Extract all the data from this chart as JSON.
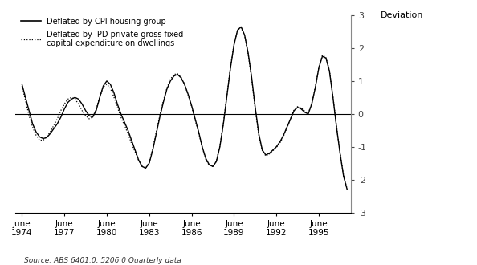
{
  "title": "",
  "ylabel": "Deviation",
  "source_text": "Source: ABS 6401.0, 5206.0 Quarterly data",
  "legend1": "Deflated by CPI housing group",
  "legend2": "Deflated by IPD private gross fixed\ncapital expenditure on dwellings",
  "ylim": [
    -3,
    3
  ],
  "yticks": [
    -3,
    -2,
    -1,
    0,
    1,
    2,
    3
  ],
  "xtick_labels": [
    "June\n1974",
    "June\n1977",
    "June\n1980",
    "June\n1983",
    "June\n1986",
    "June\n1989",
    "June\n1992",
    "June\n1995"
  ],
  "xtick_positions": [
    1974.5,
    1977.5,
    1980.5,
    1983.5,
    1986.5,
    1989.5,
    1992.5,
    1995.5
  ],
  "cpi_data": [
    [
      1974.5,
      0.9
    ],
    [
      1974.75,
      0.5
    ],
    [
      1975.0,
      0.1
    ],
    [
      1975.25,
      -0.3
    ],
    [
      1975.5,
      -0.55
    ],
    [
      1975.75,
      -0.7
    ],
    [
      1976.0,
      -0.75
    ],
    [
      1976.25,
      -0.72
    ],
    [
      1976.5,
      -0.6
    ],
    [
      1976.75,
      -0.45
    ],
    [
      1977.0,
      -0.3
    ],
    [
      1977.25,
      -0.1
    ],
    [
      1977.5,
      0.15
    ],
    [
      1977.75,
      0.35
    ],
    [
      1978.0,
      0.45
    ],
    [
      1978.25,
      0.5
    ],
    [
      1978.5,
      0.45
    ],
    [
      1978.75,
      0.3
    ],
    [
      1979.0,
      0.1
    ],
    [
      1979.25,
      -0.05
    ],
    [
      1979.5,
      -0.1
    ],
    [
      1979.75,
      0.1
    ],
    [
      1980.0,
      0.5
    ],
    [
      1980.25,
      0.85
    ],
    [
      1980.5,
      1.0
    ],
    [
      1980.75,
      0.9
    ],
    [
      1981.0,
      0.65
    ],
    [
      1981.25,
      0.3
    ],
    [
      1981.5,
      0.0
    ],
    [
      1981.75,
      -0.25
    ],
    [
      1982.0,
      -0.5
    ],
    [
      1982.25,
      -0.8
    ],
    [
      1982.5,
      -1.1
    ],
    [
      1982.75,
      -1.4
    ],
    [
      1983.0,
      -1.6
    ],
    [
      1983.25,
      -1.65
    ],
    [
      1983.5,
      -1.5
    ],
    [
      1983.75,
      -1.1
    ],
    [
      1984.0,
      -0.6
    ],
    [
      1984.25,
      -0.1
    ],
    [
      1984.5,
      0.35
    ],
    [
      1984.75,
      0.75
    ],
    [
      1985.0,
      1.0
    ],
    [
      1985.25,
      1.15
    ],
    [
      1985.5,
      1.2
    ],
    [
      1985.75,
      1.1
    ],
    [
      1986.0,
      0.9
    ],
    [
      1986.25,
      0.6
    ],
    [
      1986.5,
      0.25
    ],
    [
      1986.75,
      -0.15
    ],
    [
      1987.0,
      -0.55
    ],
    [
      1987.25,
      -1.0
    ],
    [
      1987.5,
      -1.35
    ],
    [
      1987.75,
      -1.55
    ],
    [
      1988.0,
      -1.6
    ],
    [
      1988.25,
      -1.45
    ],
    [
      1988.5,
      -1.0
    ],
    [
      1988.75,
      -0.3
    ],
    [
      1989.0,
      0.55
    ],
    [
      1989.25,
      1.4
    ],
    [
      1989.5,
      2.1
    ],
    [
      1989.75,
      2.55
    ],
    [
      1990.0,
      2.65
    ],
    [
      1990.25,
      2.4
    ],
    [
      1990.5,
      1.85
    ],
    [
      1990.75,
      1.1
    ],
    [
      1991.0,
      0.2
    ],
    [
      1991.25,
      -0.6
    ],
    [
      1991.5,
      -1.1
    ],
    [
      1991.75,
      -1.25
    ],
    [
      1992.0,
      -1.2
    ],
    [
      1992.25,
      -1.1
    ],
    [
      1992.5,
      -1.0
    ],
    [
      1992.75,
      -0.85
    ],
    [
      1993.0,
      -0.65
    ],
    [
      1993.25,
      -0.4
    ],
    [
      1993.5,
      -0.15
    ],
    [
      1993.75,
      0.1
    ],
    [
      1994.0,
      0.2
    ],
    [
      1994.25,
      0.15
    ],
    [
      1994.5,
      0.05
    ],
    [
      1994.75,
      0.0
    ],
    [
      1995.0,
      0.3
    ],
    [
      1995.25,
      0.8
    ],
    [
      1995.5,
      1.4
    ],
    [
      1995.75,
      1.75
    ],
    [
      1996.0,
      1.7
    ],
    [
      1996.25,
      1.3
    ],
    [
      1996.5,
      0.5
    ],
    [
      1996.75,
      -0.4
    ],
    [
      1997.0,
      -1.2
    ],
    [
      1997.25,
      -1.9
    ],
    [
      1997.5,
      -2.3
    ]
  ],
  "ipd_data": [
    [
      1974.5,
      0.85
    ],
    [
      1974.75,
      0.4
    ],
    [
      1975.0,
      -0.05
    ],
    [
      1975.25,
      -0.4
    ],
    [
      1975.5,
      -0.65
    ],
    [
      1975.75,
      -0.8
    ],
    [
      1976.0,
      -0.8
    ],
    [
      1976.25,
      -0.7
    ],
    [
      1976.5,
      -0.55
    ],
    [
      1976.75,
      -0.35
    ],
    [
      1977.0,
      -0.15
    ],
    [
      1977.25,
      0.1
    ],
    [
      1977.5,
      0.3
    ],
    [
      1977.75,
      0.45
    ],
    [
      1978.0,
      0.5
    ],
    [
      1978.25,
      0.45
    ],
    [
      1978.5,
      0.3
    ],
    [
      1978.75,
      0.1
    ],
    [
      1979.0,
      -0.05
    ],
    [
      1979.25,
      -0.15
    ],
    [
      1979.5,
      -0.1
    ],
    [
      1979.75,
      0.15
    ],
    [
      1980.0,
      0.5
    ],
    [
      1980.25,
      0.82
    ],
    [
      1980.5,
      0.9
    ],
    [
      1980.75,
      0.78
    ],
    [
      1981.0,
      0.52
    ],
    [
      1981.25,
      0.2
    ],
    [
      1981.5,
      -0.1
    ],
    [
      1981.75,
      -0.35
    ],
    [
      1982.0,
      -0.6
    ],
    [
      1982.25,
      -0.9
    ],
    [
      1982.5,
      -1.15
    ],
    [
      1982.75,
      -1.42
    ],
    [
      1983.0,
      -1.6
    ],
    [
      1983.25,
      -1.65
    ],
    [
      1983.5,
      -1.48
    ],
    [
      1983.75,
      -1.05
    ],
    [
      1984.0,
      -0.55
    ],
    [
      1984.25,
      -0.05
    ],
    [
      1984.5,
      0.4
    ],
    [
      1984.75,
      0.78
    ],
    [
      1985.0,
      1.05
    ],
    [
      1985.25,
      1.2
    ],
    [
      1985.5,
      1.22
    ],
    [
      1985.75,
      1.12
    ],
    [
      1986.0,
      0.9
    ],
    [
      1986.25,
      0.58
    ],
    [
      1986.5,
      0.22
    ],
    [
      1986.75,
      -0.18
    ],
    [
      1987.0,
      -0.58
    ],
    [
      1987.25,
      -1.02
    ],
    [
      1987.5,
      -1.38
    ],
    [
      1987.75,
      -1.57
    ],
    [
      1988.0,
      -1.6
    ],
    [
      1988.25,
      -1.44
    ],
    [
      1988.5,
      -0.98
    ],
    [
      1988.75,
      -0.28
    ],
    [
      1989.0,
      0.58
    ],
    [
      1989.25,
      1.42
    ],
    [
      1989.5,
      2.12
    ],
    [
      1989.75,
      2.55
    ],
    [
      1990.0,
      2.62
    ],
    [
      1990.25,
      2.38
    ],
    [
      1990.5,
      1.82
    ],
    [
      1990.75,
      1.05
    ],
    [
      1991.0,
      0.15
    ],
    [
      1991.25,
      -0.65
    ],
    [
      1991.5,
      -1.12
    ],
    [
      1991.75,
      -1.28
    ],
    [
      1992.0,
      -1.22
    ],
    [
      1992.25,
      -1.12
    ],
    [
      1992.5,
      -1.02
    ],
    [
      1992.75,
      -0.88
    ],
    [
      1993.0,
      -0.68
    ],
    [
      1993.25,
      -0.42
    ],
    [
      1993.5,
      -0.15
    ],
    [
      1993.75,
      0.12
    ],
    [
      1994.0,
      0.22
    ],
    [
      1994.25,
      0.18
    ],
    [
      1994.5,
      0.08
    ],
    [
      1994.75,
      0.02
    ],
    [
      1995.0,
      0.32
    ],
    [
      1995.25,
      0.82
    ],
    [
      1995.5,
      1.42
    ],
    [
      1995.75,
      1.78
    ],
    [
      1996.0,
      1.72
    ],
    [
      1996.25,
      1.32
    ],
    [
      1996.5,
      0.52
    ],
    [
      1996.75,
      -0.38
    ],
    [
      1997.0,
      -1.18
    ],
    [
      1997.25,
      -1.88
    ],
    [
      1997.5,
      -2.28
    ]
  ],
  "line_color": "#000000",
  "bg_color": "#ffffff",
  "xmin": 1974.0,
  "xmax": 1997.75
}
